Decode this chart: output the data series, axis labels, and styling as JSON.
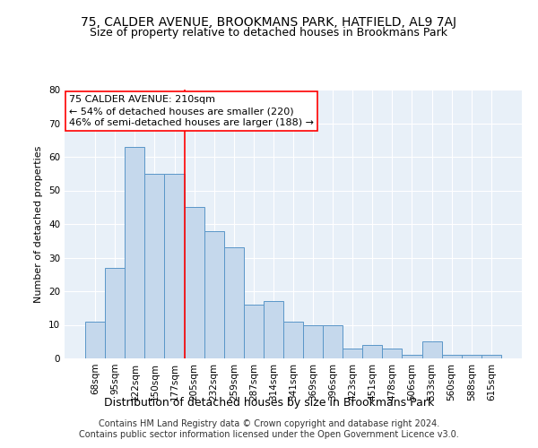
{
  "title1": "75, CALDER AVENUE, BROOKMANS PARK, HATFIELD, AL9 7AJ",
  "title2": "Size of property relative to detached houses in Brookmans Park",
  "xlabel": "Distribution of detached houses by size in Brookmans Park",
  "ylabel": "Number of detached properties",
  "categories": [
    "68sqm",
    "95sqm",
    "122sqm",
    "150sqm",
    "177sqm",
    "205sqm",
    "232sqm",
    "259sqm",
    "287sqm",
    "314sqm",
    "341sqm",
    "369sqm",
    "396sqm",
    "423sqm",
    "451sqm",
    "478sqm",
    "506sqm",
    "533sqm",
    "560sqm",
    "588sqm",
    "615sqm"
  ],
  "values": [
    11,
    27,
    63,
    55,
    55,
    45,
    38,
    33,
    16,
    17,
    11,
    10,
    10,
    3,
    4,
    3,
    1,
    5,
    1,
    1,
    1
  ],
  "bar_color": "#c5d8ec",
  "bar_edge_color": "#5a96c8",
  "vline_index": 5,
  "annotation_text": "75 CALDER AVENUE: 210sqm\n← 54% of detached houses are smaller (220)\n46% of semi-detached houses are larger (188) →",
  "annotation_box_color": "white",
  "annotation_box_edge_color": "red",
  "vline_color": "red",
  "ylim": [
    0,
    80
  ],
  "yticks": [
    0,
    10,
    20,
    30,
    40,
    50,
    60,
    70,
    80
  ],
  "background_color": "#e8f0f8",
  "footer1": "Contains HM Land Registry data © Crown copyright and database right 2024.",
  "footer2": "Contains public sector information licensed under the Open Government Licence v3.0.",
  "title1_fontsize": 10,
  "title2_fontsize": 9,
  "xlabel_fontsize": 9,
  "ylabel_fontsize": 8,
  "tick_fontsize": 7.5,
  "annotation_fontsize": 8,
  "footer_fontsize": 7
}
